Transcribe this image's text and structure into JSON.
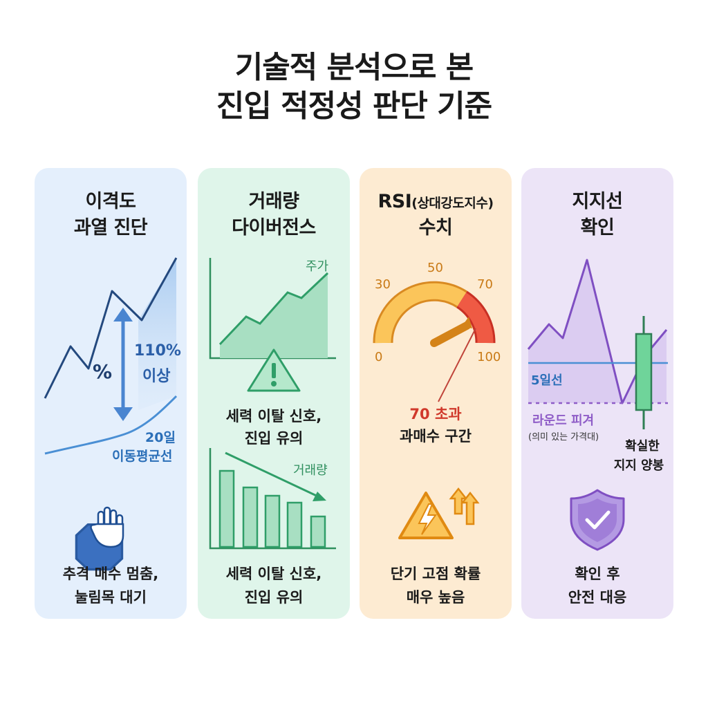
{
  "title": {
    "line1": "기술적 분석으로 본",
    "line2": "진입 적정성 판단 기준"
  },
  "colors": {
    "blue": "#3f78c6",
    "green": "#3fae7a",
    "orange": "#e8a33a",
    "red": "#e34a3a",
    "purple": "#8e5cc7"
  },
  "cards": [
    {
      "head1": "이격도",
      "head2": "과열 진단",
      "pct_symbol": "%",
      "gap_value": "110%",
      "gap_note": "이상",
      "ma_label1": "20일",
      "ma_label2": "이동평균선",
      "icon": "stop-hand-icon",
      "footer1": "추격 매수 멈춤,",
      "footer2": "눌림목 대기"
    },
    {
      "head1": "거래량",
      "head2": "다이버전스",
      "price_label": "주가",
      "warning1": "세력 이탈 신호,",
      "warning2": "진입 유의",
      "volume_label": "거래량",
      "icon": "warning-triangle-icon",
      "footer1": "세력 이탈 신호,",
      "footer2": "진입 유의"
    },
    {
      "head_main": "RSI",
      "head_sub": "(상대강도지수)",
      "head2": "수치",
      "gauge_ticks": [
        "0",
        "30",
        "50",
        "70",
        "100"
      ],
      "gauge_value": 70,
      "over1": "70 초과",
      "over2": "과매수 구간",
      "icon": "lightning-warning-icon",
      "footer1": "단기 고점 확률",
      "footer2": "매우 높음"
    },
    {
      "head1": "지지선",
      "head2": "확인",
      "ma_label": "5일선",
      "round_label": "라운드 피겨",
      "round_note": "(의미 있는 가격대)",
      "confirm1": "확실한",
      "confirm2": "지지 양봉",
      "icon": "shield-check-icon",
      "footer1": "확인 후",
      "footer2": "안전 대응"
    }
  ]
}
